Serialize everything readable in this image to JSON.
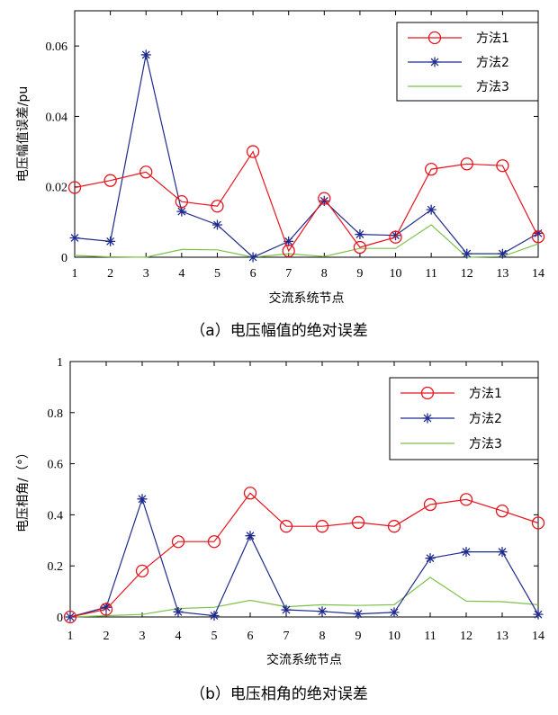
{
  "colors": {
    "method1": "#e8141e",
    "method2": "#1f2b8c",
    "method3": "#7cc24a",
    "axis": "#000000"
  },
  "chart_data": [
    {
      "type": "line",
      "categories": [
        "1",
        "2",
        "3",
        "4",
        "5",
        "6",
        "7",
        "8",
        "9",
        "10",
        "11",
        "12",
        "13",
        "14"
      ],
      "xlabel": "交流系统节点",
      "ylabel": "电压幅值误差/pu",
      "ylim": [
        0,
        0.07
      ],
      "yticks": [
        0,
        0.02,
        0.04,
        0.06
      ],
      "ytick_labels": [
        "0",
        "0.02",
        "0.04",
        "0.06"
      ],
      "legend_position": "top-right",
      "caption": "（a）电压幅值的绝对误差",
      "series": [
        {
          "name": "方法1",
          "marker": "circle",
          "color_key": "method1",
          "values": [
            0.0198,
            0.0218,
            0.0242,
            0.0158,
            0.0145,
            0.03,
            0.0018,
            0.0167,
            0.0028,
            0.0057,
            0.025,
            0.0265,
            0.026,
            0.0058
          ]
        },
        {
          "name": "方法2",
          "marker": "star",
          "color_key": "method2",
          "values": [
            0.0055,
            0.0045,
            0.0575,
            0.013,
            0.0092,
            0.0,
            0.0045,
            0.016,
            0.0065,
            0.0062,
            0.0135,
            0.001,
            0.001,
            0.0068
          ]
        },
        {
          "name": "方法3",
          "marker": "none",
          "color_key": "method3",
          "values": [
            0.0005,
            0.0001,
            0.0,
            0.0022,
            0.0021,
            0.0,
            0.001,
            0.0002,
            0.0025,
            0.0025,
            0.0092,
            0.0,
            0.0002,
            0.0038
          ]
        }
      ]
    },
    {
      "type": "line",
      "categories": [
        "1",
        "2",
        "3",
        "4",
        "5",
        "6",
        "7",
        "8",
        "9",
        "10",
        "11",
        "12",
        "13",
        "14"
      ],
      "xlabel": "交流系统节点",
      "ylabel": "电压相角/（°）",
      "ylim": [
        0,
        1
      ],
      "yticks": [
        0,
        0.2,
        0.4,
        0.6,
        0.8,
        1
      ],
      "ytick_labels": [
        "0",
        "0.2",
        "0.4",
        "0.6",
        "0.8",
        "1"
      ],
      "legend_position": "top-right",
      "caption": "（b）电压相角的绝对误差",
      "series": [
        {
          "name": "方法1",
          "marker": "circle",
          "color_key": "method1",
          "values": [
            0.0,
            0.03,
            0.18,
            0.295,
            0.295,
            0.485,
            0.355,
            0.355,
            0.37,
            0.355,
            0.44,
            0.46,
            0.415,
            0.368
          ]
        },
        {
          "name": "方法2",
          "marker": "star",
          "color_key": "method2",
          "values": [
            0.0,
            0.038,
            0.462,
            0.02,
            0.005,
            0.318,
            0.028,
            0.022,
            0.012,
            0.018,
            0.23,
            0.255,
            0.255,
            0.01
          ]
        },
        {
          "name": "方法3",
          "marker": "none",
          "color_key": "method3",
          "values": [
            0.0,
            0.005,
            0.01,
            0.033,
            0.038,
            0.065,
            0.04,
            0.048,
            0.045,
            0.048,
            0.155,
            0.062,
            0.06,
            0.048
          ]
        }
      ]
    }
  ]
}
